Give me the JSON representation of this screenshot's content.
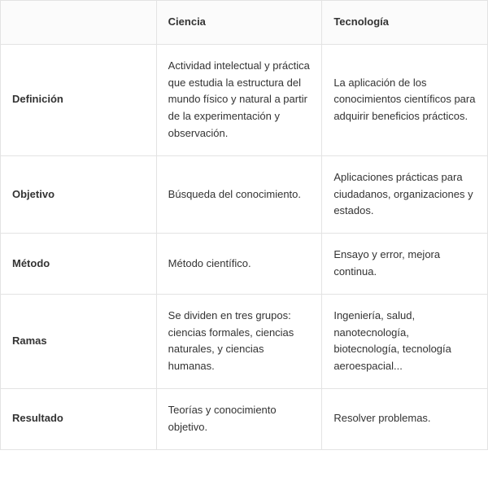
{
  "table": {
    "type": "table",
    "background_color": "#ffffff",
    "header_background": "#fbfbfb",
    "border_color": "#e3e3e3",
    "text_color": "#333333",
    "font_family": "Verdana, Geneva, sans-serif",
    "cell_fontsize": 13,
    "column_widths_pct": [
      32,
      34,
      34
    ],
    "columns": [
      "",
      "Ciencia",
      "Tecnología"
    ],
    "rows": [
      {
        "label": "Definición",
        "ciencia": "Actividad intelectual y práctica que estudia la estructura del mundo físico y natural a partir de la experimentación y observación.",
        "tecnologia": "La aplicación de los conocimientos científicos para adquirir beneficios prácticos."
      },
      {
        "label": "Objetivo",
        "ciencia": "Búsqueda del conocimiento.",
        "tecnologia": "Aplicaciones prácticas para ciudadanos, organizaciones y estados."
      },
      {
        "label": "Método",
        "ciencia": "Método científico.",
        "tecnologia": "Ensayo y error, mejora continua."
      },
      {
        "label": "Ramas",
        "ciencia": "Se dividen en tres grupos: ciencias formales, ciencias naturales, y ciencias humanas.",
        "tecnologia": "Ingeniería, salud, nanotecnología, biotecnología, tecnología aeroespacial..."
      },
      {
        "label": "Resultado",
        "ciencia": "Teorías y conocimiento objetivo.",
        "tecnologia": "Resolver problemas."
      }
    ]
  }
}
